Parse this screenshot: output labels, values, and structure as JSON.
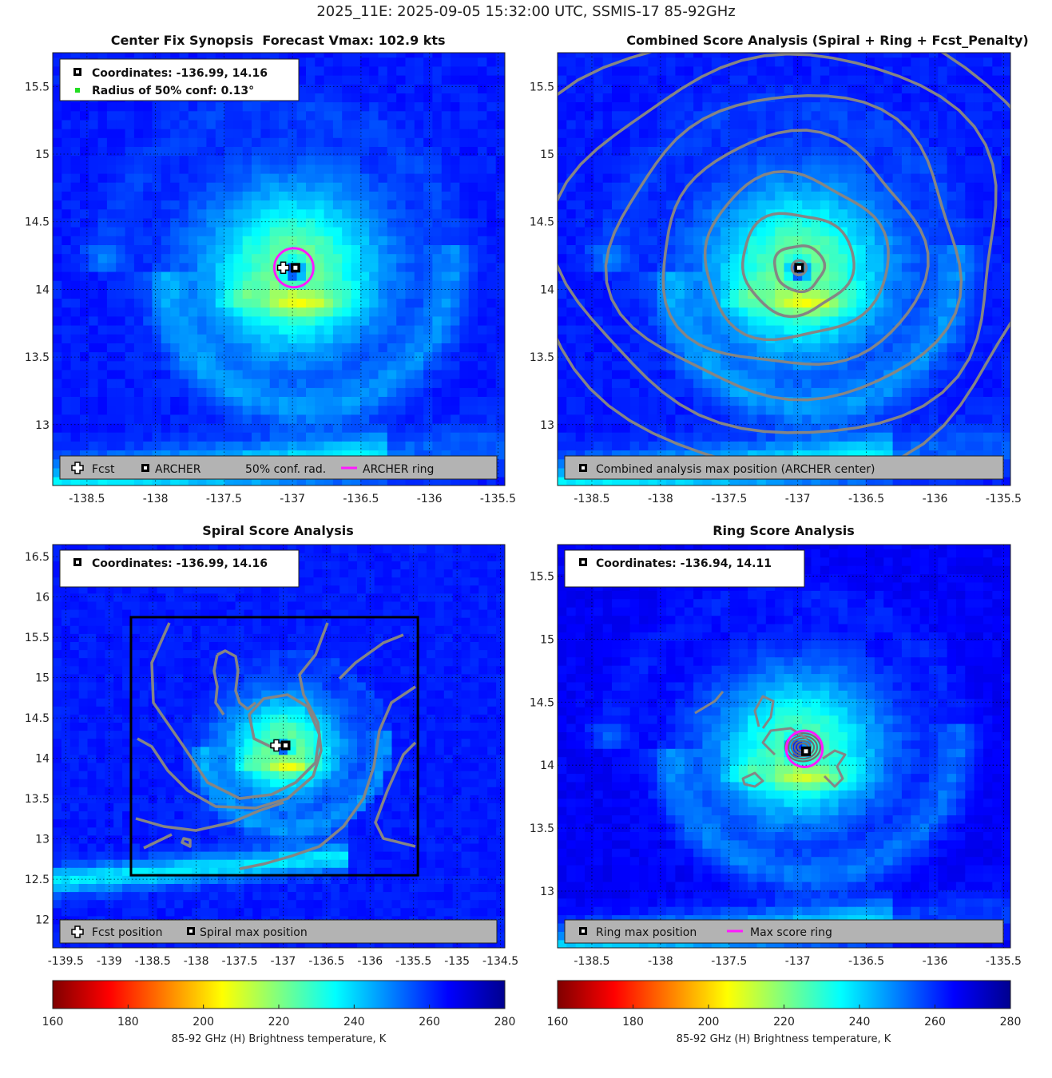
{
  "figure_title": "2025_11E: 2025-09-05 15:32:00 UTC, SSMIS-17 85-92GHz",
  "panels": [
    {
      "id": "synopsis",
      "title_left": "Center Fix Synopsis",
      "title_right": "Forecast Vmax: 102.9 kts",
      "info_lines": [
        {
          "marker": "archer",
          "text": "Coordinates: -136.99, 14.16"
        },
        {
          "marker": "green-dot",
          "text": "Radius of 50% conf: 0.13°"
        }
      ],
      "legend": [
        {
          "marker": "fcst",
          "text": "Fcst"
        },
        {
          "marker": "archer",
          "text": "ARCHER"
        },
        {
          "marker": "none",
          "text": "50% conf. rad."
        },
        {
          "marker": "magenta-line",
          "text": "ARCHER ring"
        }
      ]
    },
    {
      "id": "combined",
      "title": "Combined Score Analysis (Spiral + Ring + Fcst_Penalty)",
      "legend": [
        {
          "marker": "archer",
          "text": "Combined analysis max position (ARCHER center)"
        }
      ]
    },
    {
      "id": "spiral",
      "title": "Spiral Score Analysis",
      "info_lines": [
        {
          "marker": "archer",
          "text": "Coordinates: -136.99, 14.16"
        }
      ],
      "legend": [
        {
          "marker": "fcst",
          "text": "Fcst position"
        },
        {
          "marker": "archer",
          "text": "Spiral max position"
        }
      ]
    },
    {
      "id": "ring",
      "title": "Ring Score Analysis",
      "info_lines": [
        {
          "marker": "archer",
          "text": "Coordinates: -136.94, 14.11"
        }
      ],
      "legend": [
        {
          "marker": "archer",
          "text": "Ring max position"
        },
        {
          "marker": "magenta-line",
          "text": "Max score ring"
        }
      ]
    }
  ],
  "colorbars": [
    {
      "label": "85-92 GHz (H) Brightness temperature, K",
      "ticks": [
        "160",
        "180",
        "200",
        "220",
        "240",
        "260",
        "280"
      ],
      "range": [
        160,
        280
      ]
    },
    {
      "label": "85-92 GHz (H) Brightness temperature, K",
      "ticks": [
        "160",
        "180",
        "200",
        "220",
        "240",
        "260",
        "280"
      ],
      "range": [
        160,
        280
      ]
    }
  ],
  "chart_data": [
    {
      "type": "heatmap",
      "title": "Center Fix Synopsis     Forecast Vmax: 102.9 kts",
      "xlim": [
        -138.75,
        -135.45
      ],
      "ylim": [
        12.55,
        15.75
      ],
      "xticks": [
        -138.5,
        -138,
        -137.5,
        -137,
        -136.5,
        -136,
        -135.5
      ],
      "yticks": [
        13,
        13.5,
        14,
        14.5,
        15,
        15.5
      ],
      "xticklabels": [
        "-138.5",
        "-138",
        "-137.5",
        "-137",
        "-136.5",
        "-136",
        "-135.5"
      ],
      "yticklabels": [
        "13",
        "13.5",
        "14",
        "14.5",
        "15",
        "15.5"
      ],
      "archer_center": [
        -136.99,
        14.16
      ],
      "forecast_position": [
        -137.05,
        14.16
      ],
      "confidence_radius_deg": 0.13,
      "archer_ring_radius_deg": 0.15,
      "colormap_range_K": [
        160,
        280
      ]
    },
    {
      "type": "heatmap",
      "title": "Combined Score Analysis (Spiral + Ring + Fcst_Penalty)",
      "xlim": [
        -138.75,
        -135.45
      ],
      "ylim": [
        12.55,
        15.75
      ],
      "xticks": [
        -138.5,
        -138,
        -137.5,
        -137,
        -136.5,
        -136,
        -135.5
      ],
      "yticks": [
        13,
        13.5,
        14,
        14.5,
        15,
        15.5
      ],
      "xticklabels": [
        "-138.5",
        "-138",
        "-137.5",
        "-137",
        "-136.5",
        "-136",
        "-135.5"
      ],
      "yticklabels": [
        "13",
        "13.5",
        "14",
        "14.5",
        "15",
        "15.5"
      ],
      "max_position": [
        -136.99,
        14.16
      ],
      "contour_radii_deg": [
        0.18,
        0.4,
        0.65,
        0.92,
        1.2,
        1.5,
        1.8
      ]
    },
    {
      "type": "heatmap",
      "title": "Spiral Score Analysis",
      "xlim": [
        -139.65,
        -134.45
      ],
      "ylim": [
        11.65,
        16.65
      ],
      "xticks": [
        -139.5,
        -139,
        -138.5,
        -138,
        -137.5,
        -137,
        -136.5,
        -136,
        -135.5,
        -135,
        -134.5
      ],
      "yticks": [
        12,
        12.5,
        13,
        13.5,
        14,
        14.5,
        15,
        15.5,
        16,
        16.5
      ],
      "xticklabels": [
        "-139.5",
        "-139",
        "-138.5",
        "-138",
        "-137.5",
        "-137",
        "-136.5",
        "-136",
        "-135.5",
        "-135",
        "-134.5"
      ],
      "yticklabels": [
        "12",
        "12.5",
        "13",
        "13.5",
        "14",
        "14.5",
        "15",
        "15.5",
        "16",
        "16.5"
      ],
      "max_position": [
        -136.99,
        14.16
      ],
      "forecast_position": [
        -137.05,
        14.16
      ],
      "search_box": {
        "lon": [
          -138.75,
          -135.45
        ],
        "lat": [
          12.55,
          15.75
        ]
      }
    },
    {
      "type": "heatmap",
      "title": "Ring Score Analysis",
      "xlim": [
        -138.75,
        -135.45
      ],
      "ylim": [
        12.55,
        15.75
      ],
      "xticks": [
        -138.5,
        -138,
        -137.5,
        -137,
        -136.5,
        -136,
        -135.5
      ],
      "yticks": [
        13,
        13.5,
        14,
        14.5,
        15,
        15.5
      ],
      "xticklabels": [
        "-138.5",
        "-138",
        "-137.5",
        "-137",
        "-136.5",
        "-136",
        "-135.5"
      ],
      "yticklabels": [
        "13",
        "13.5",
        "14",
        "14.5",
        "15",
        "15.5"
      ],
      "max_position": [
        -136.94,
        14.11
      ],
      "max_ring_radius_deg": 0.15
    }
  ],
  "colors": {
    "ring": "#ff19ff",
    "contour": "#858585",
    "legend_bg": "#b3b3b3",
    "conf_dot": "#22dd22",
    "jet": [
      "#800000",
      "#ff0000",
      "#ff8000",
      "#ffff00",
      "#80ff80",
      "#00ffff",
      "#0080ff",
      "#0000ff",
      "#00008f"
    ]
  }
}
